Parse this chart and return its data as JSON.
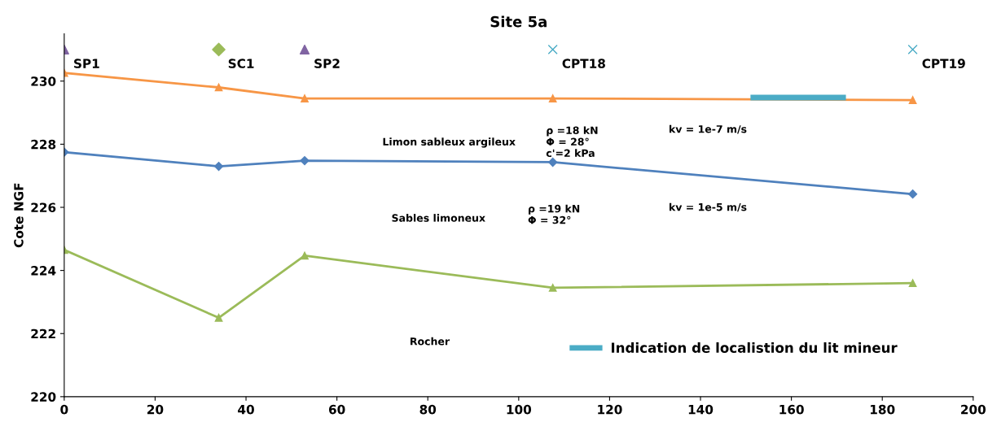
{
  "chart_data": {
    "type": "line",
    "title": "Site 5a",
    "ylabel": "Cote NGF",
    "xlim": [
      0,
      200
    ],
    "xticks": [
      0,
      20,
      40,
      60,
      80,
      100,
      120,
      140,
      160,
      180,
      200
    ],
    "ylim": [
      220,
      231.5
    ],
    "yticks": [
      220,
      222,
      224,
      226,
      228,
      230
    ],
    "grid": false,
    "legend": "bottom right",
    "series": [
      {
        "color": "#f79646",
        "marker": "triangle",
        "x": [
          0,
          34,
          52.9,
          107.5,
          186.7
        ],
        "values": [
          230.26,
          229.8,
          229.45,
          229.45,
          229.4
        ]
      },
      {
        "color": "#4f81bd",
        "marker": "diamond",
        "x": [
          0,
          34,
          52.9,
          107.5,
          186.7
        ],
        "values": [
          227.75,
          227.3,
          227.48,
          227.43,
          226.42
        ]
      },
      {
        "color": "#9bbb59",
        "marker": "triangle",
        "x": [
          0,
          34,
          52.9,
          107.5,
          186.7
        ],
        "values": [
          224.65,
          222.5,
          224.47,
          223.45,
          223.6
        ]
      },
      {
        "name": "Indication de localistion du lit mineur",
        "color": "#4bacc6",
        "marker": "none",
        "x": [
          151,
          172
        ],
        "values": [
          229.48,
          229.48
        ]
      },
      {
        "name": "SP1",
        "type": "scatter",
        "color": "#8064a2",
        "marker": "triangle",
        "x": [
          0
        ],
        "values": [
          231
        ]
      },
      {
        "name": "SC1",
        "type": "scatter",
        "color": "#9bbb59",
        "marker": "diamond",
        "x": [
          34
        ],
        "values": [
          231
        ]
      },
      {
        "name": "SP2",
        "type": "scatter",
        "color": "#8064a2",
        "marker": "triangle",
        "x": [
          52.9
        ],
        "values": [
          231
        ]
      },
      {
        "name": "CPT18",
        "type": "scatter",
        "color": "#4bacc6",
        "marker": "cross",
        "x": [
          107.5
        ],
        "values": [
          231
        ]
      },
      {
        "name": "CPT19",
        "type": "scatter",
        "color": "#4bacc6",
        "marker": "cross",
        "x": [
          186.7
        ],
        "values": [
          231
        ]
      }
    ],
    "annotations": [
      "Limon sableux argileux",
      "ρ =18 kN\nΦ = 28°\nc'=2 kPa",
      "kv = 1e-7 m/s",
      "Sables limoneux",
      "ρ =19 kN\nΦ = 32°",
      "kv = 1e-5 m/s",
      "Rocher"
    ]
  }
}
